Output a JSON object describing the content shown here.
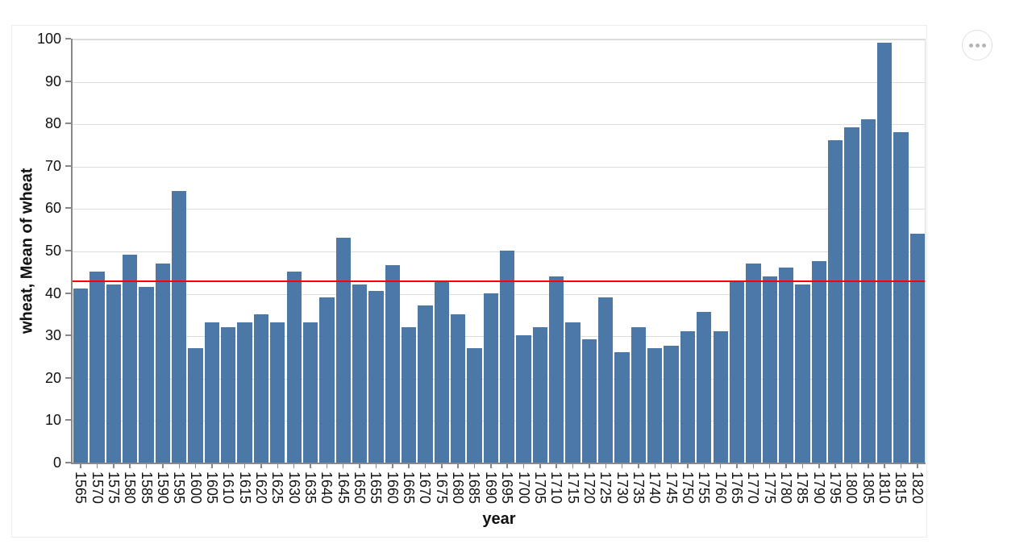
{
  "chart_data": {
    "type": "bar",
    "title": "",
    "xlabel": "year",
    "ylabel": "wheat, Mean of wheat",
    "categories": [
      "1565",
      "1570",
      "1575",
      "1580",
      "1585",
      "1590",
      "1595",
      "1600",
      "1605",
      "1610",
      "1615",
      "1620",
      "1625",
      "1630",
      "1635",
      "1640",
      "1645",
      "1650",
      "1655",
      "1660",
      "1665",
      "1670",
      "1675",
      "1680",
      "1685",
      "1690",
      "1695",
      "1700",
      "1705",
      "1710",
      "1715",
      "1720",
      "1725",
      "1730",
      "1735",
      "1740",
      "1745",
      "1750",
      "1755",
      "1760",
      "1765",
      "1770",
      "1775",
      "1780",
      "1785",
      "1790",
      "1795",
      "1800",
      "1805",
      "1810",
      "1815",
      "1820"
    ],
    "values": [
      41,
      45,
      42,
      49,
      41.5,
      47,
      64,
      27,
      33,
      32,
      33,
      35,
      33,
      45,
      33,
      39,
      53,
      42,
      40.5,
      46.5,
      32,
      37,
      43,
      35,
      27,
      40,
      50,
      30,
      32,
      44,
      33,
      29,
      39,
      26,
      32,
      27,
      27.5,
      31,
      35.5,
      31,
      43,
      47,
      44,
      46,
      42,
      47.5,
      76,
      79,
      81,
      99,
      78,
      54
    ],
    "mean_rule": {
      "value": 43.06,
      "color": "#ff0000"
    },
    "ylim": [
      0,
      100
    ],
    "y_ticks": [
      0,
      10,
      20,
      30,
      40,
      50,
      60,
      70,
      80,
      90,
      100
    ],
    "grid": true,
    "legend": "none",
    "bar_color": "#4c78a8",
    "axis_color": "#888888",
    "grid_color": "#dddddd",
    "label_color": "#111111"
  },
  "actions_button": {
    "icon": "ellipsis",
    "dot_count": 3
  }
}
